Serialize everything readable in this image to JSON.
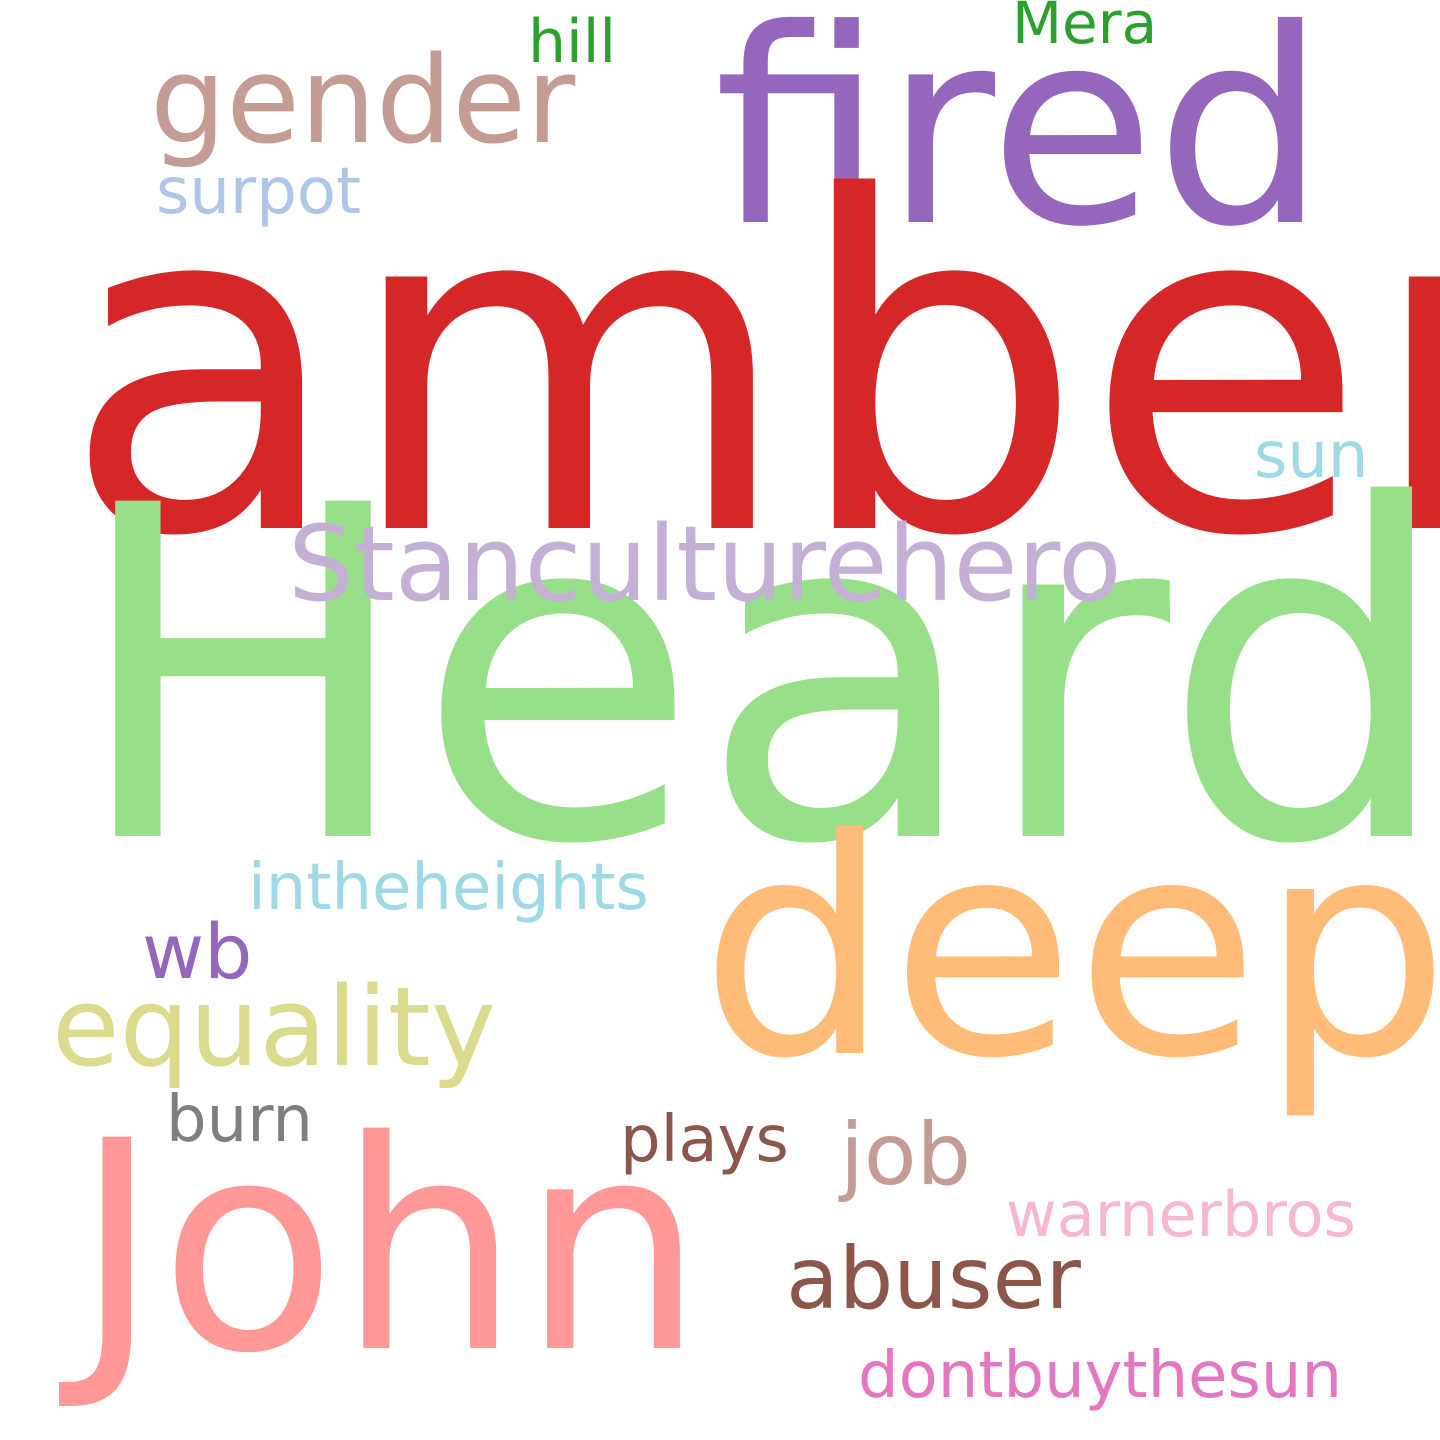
{
  "words": {
    "amber": {
      "text": "amber",
      "color": "#d62728"
    },
    "heard": {
      "text": "Heard",
      "color": "#98df8a"
    },
    "fired": {
      "text": "fired",
      "color": "#9467bd"
    },
    "deep": {
      "text": "deep",
      "color": "#ffbb78"
    },
    "john": {
      "text": "John",
      "color": "#ff9896"
    },
    "gender": {
      "text": "gender",
      "color": "#c49c94"
    },
    "stan": {
      "text": "Stanculturehero",
      "color": "#c5b0d5"
    },
    "equality": {
      "text": "equality",
      "color": "#dbdb8d"
    },
    "abuser": {
      "text": "abuser",
      "color": "#8c564b"
    },
    "job": {
      "text": "job",
      "color": "#c49c94"
    },
    "intheheights": {
      "text": "intheheights",
      "color": "#9edae5"
    },
    "wb": {
      "text": "wb",
      "color": "#9467bd"
    },
    "burn": {
      "text": "burn",
      "color": "#7f7f7f"
    },
    "plays": {
      "text": "plays",
      "color": "#8c564b"
    },
    "warnerbros": {
      "text": "warnerbros",
      "color": "#f7b6d2"
    },
    "dontbuythesun": {
      "text": "dontbuythesun",
      "color": "#e377c2"
    },
    "surpot": {
      "text": "surpot",
      "color": "#aec7e8"
    },
    "hill": {
      "text": "hill",
      "color": "#2ca02c"
    },
    "mera": {
      "text": "Mera",
      "color": "#2ca02c"
    },
    "sun": {
      "text": "sun",
      "color": "#9edae5"
    }
  }
}
